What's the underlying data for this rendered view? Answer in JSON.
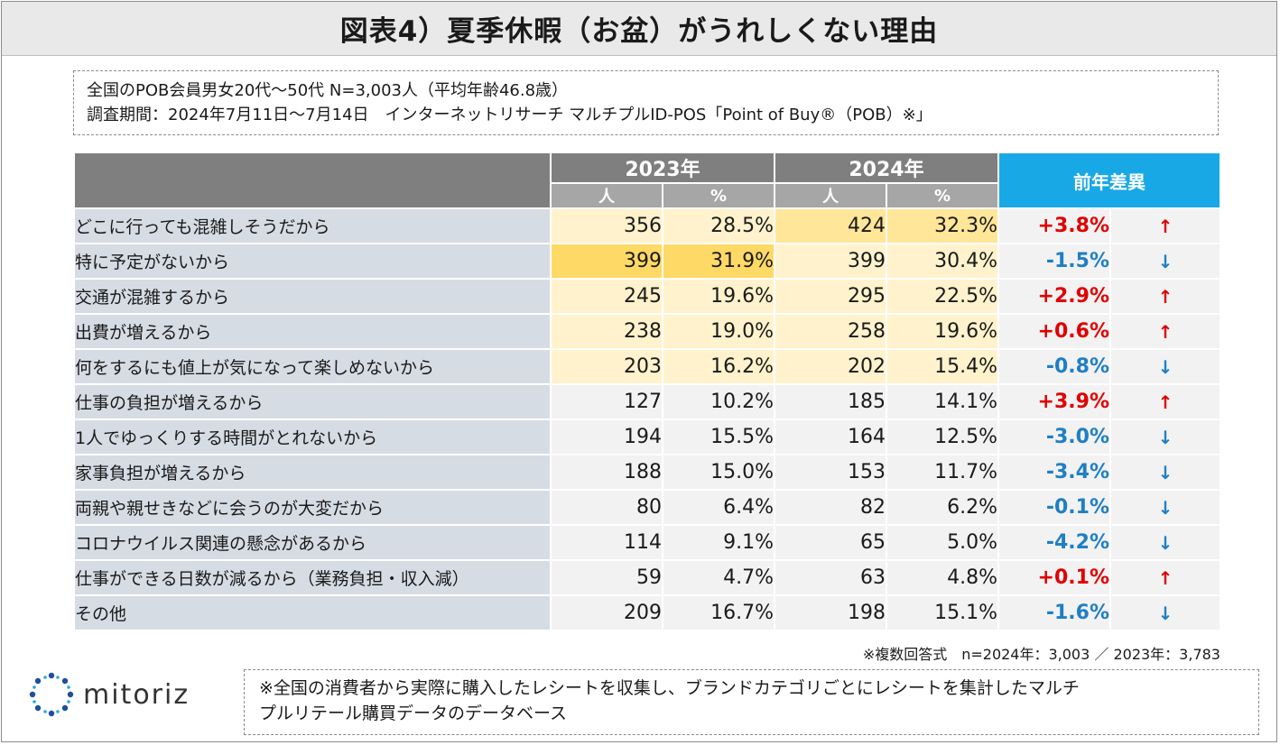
{
  "title": "図表4）夏季休暇（お盆）がうれしくない理由",
  "info": {
    "line1": "全国のPOB会員男女20代〜50代 N=3,003人（平均年齢46.8歳）",
    "line2": "調査期間：2024年7月11日〜7月14日　インターネットリサーチ マルチプルID-POS「Point of Buy®（POB）※」"
  },
  "table": {
    "year1": "2023年",
    "year2": "2024年",
    "diff_header": "前年差異",
    "sub_people": "人",
    "sub_pct": "%",
    "rows": [
      {
        "label": "どこに行っても混雑しそうだから",
        "n2023": "356",
        "p2023": "28.5%",
        "n2024": "424",
        "p2024": "32.3%",
        "diff": "+3.8%",
        "arrow": "↑"
      },
      {
        "label": "特に予定がないから",
        "n2023": "399",
        "p2023": "31.9%",
        "n2024": "399",
        "p2024": "30.4%",
        "diff": "-1.5%",
        "arrow": "↓"
      },
      {
        "label": "交通が混雑するから",
        "n2023": "245",
        "p2023": "19.6%",
        "n2024": "295",
        "p2024": "22.5%",
        "diff": "+2.9%",
        "arrow": "↑"
      },
      {
        "label": "出費が増えるから",
        "n2023": "238",
        "p2023": "19.0%",
        "n2024": "258",
        "p2024": "19.6%",
        "diff": "+0.6%",
        "arrow": "↑"
      },
      {
        "label": "何をするにも値上が気になって楽しめないから",
        "n2023": "203",
        "p2023": "16.2%",
        "n2024": "202",
        "p2024": "15.4%",
        "diff": "-0.8%",
        "arrow": "↓"
      },
      {
        "label": "仕事の負担が増えるから",
        "n2023": "127",
        "p2023": "10.2%",
        "n2024": "185",
        "p2024": "14.1%",
        "diff": "+3.9%",
        "arrow": "↑"
      },
      {
        "label": "1人でゆっくりする時間がとれないから",
        "n2023": "194",
        "p2023": "15.5%",
        "n2024": "164",
        "p2024": "12.5%",
        "diff": "-3.0%",
        "arrow": "↓"
      },
      {
        "label": "家事負担が増えるから",
        "n2023": "188",
        "p2023": "15.0%",
        "n2024": "153",
        "p2024": "11.7%",
        "diff": "-3.4%",
        "arrow": "↓"
      },
      {
        "label": "両親や親せきなどに会うのが大変だから",
        "n2023": "80",
        "p2023": "6.4%",
        "n2024": "82",
        "p2024": "6.2%",
        "diff": "-0.1%",
        "arrow": "↓"
      },
      {
        "label": "コロナウイルス関連の懸念があるから",
        "n2023": "114",
        "p2023": "9.1%",
        "n2024": "65",
        "p2024": "5.0%",
        "diff": "-4.2%",
        "arrow": "↓"
      },
      {
        "label": "仕事ができる日数が減るから（業務負担・収入減）",
        "n2023": "59",
        "p2023": "4.7%",
        "n2024": "63",
        "p2024": "4.8%",
        "diff": "+0.1%",
        "arrow": "↑"
      },
      {
        "label": "その他",
        "n2023": "209",
        "p2023": "16.7%",
        "n2024": "198",
        "p2024": "15.1%",
        "diff": "-1.6%",
        "arrow": "↓"
      }
    ]
  },
  "footnote": "※複数回答式　n=2024年：3,003 ／ 2023年：3,783",
  "note": {
    "line1": "※全国の消費者から実際に購入したレシートを収集し、ブランドカテゴリごとにレシートを集計したマルチ",
    "line2": "プルリテール購買データのデータベース"
  },
  "logo": {
    "text": "mitoriz",
    "icon": "mitoriz-logo-icon"
  },
  "colors": {
    "header_gray": "#7f7f7f",
    "sub_gray": "#a6a6a6",
    "diff_blue": "#19a8e6",
    "up_red": "#e00000",
    "down_blue": "#1f7fc4",
    "highlight_strong": "#ffd966",
    "highlight_mid": "#ffe699",
    "highlight_light": "#fff2cc"
  }
}
